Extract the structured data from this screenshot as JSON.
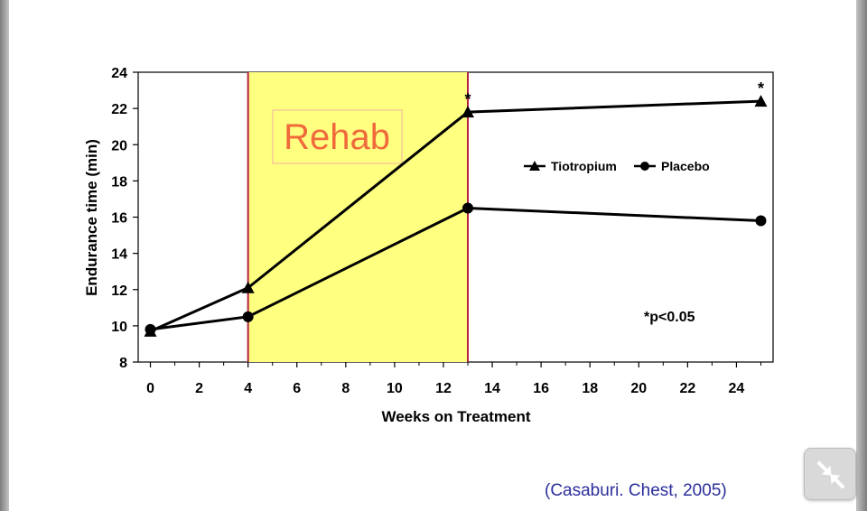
{
  "slide": {
    "citation": "(Casaburi. Chest, 2005)",
    "exit_fullscreen_icon": "collapse-arrows-icon"
  },
  "chart_data": {
    "type": "line",
    "title": "",
    "xlabel": "Weeks on Treatment",
    "ylabel": "Endurance time (min)",
    "xlim": [
      -0.5,
      25.5
    ],
    "ylim": [
      8,
      24
    ],
    "xticks": [
      0,
      2,
      4,
      6,
      8,
      10,
      12,
      14,
      16,
      18,
      20,
      22,
      24
    ],
    "yticks": [
      8,
      10,
      12,
      14,
      16,
      18,
      20,
      22,
      24
    ],
    "series": [
      {
        "name": "Tiotropium",
        "marker": "triangle",
        "color": "#000000",
        "x": [
          0,
          4,
          13,
          25
        ],
        "y": [
          9.7,
          12.1,
          21.8,
          22.4
        ],
        "significant_at": [
          13,
          25
        ]
      },
      {
        "name": "Placebo",
        "marker": "circle",
        "color": "#000000",
        "x": [
          0,
          4,
          13,
          25
        ],
        "y": [
          9.8,
          10.5,
          16.5,
          15.8
        ]
      }
    ],
    "shaded_region": {
      "x": [
        4,
        13
      ],
      "label": "Rehab",
      "fill": "#ffff80",
      "border": "#b02040",
      "label_color": "#f06a3c"
    },
    "significance_marker": "*",
    "annotation": "*p<0.05",
    "legend_placement": "right-middle",
    "grid": false
  }
}
